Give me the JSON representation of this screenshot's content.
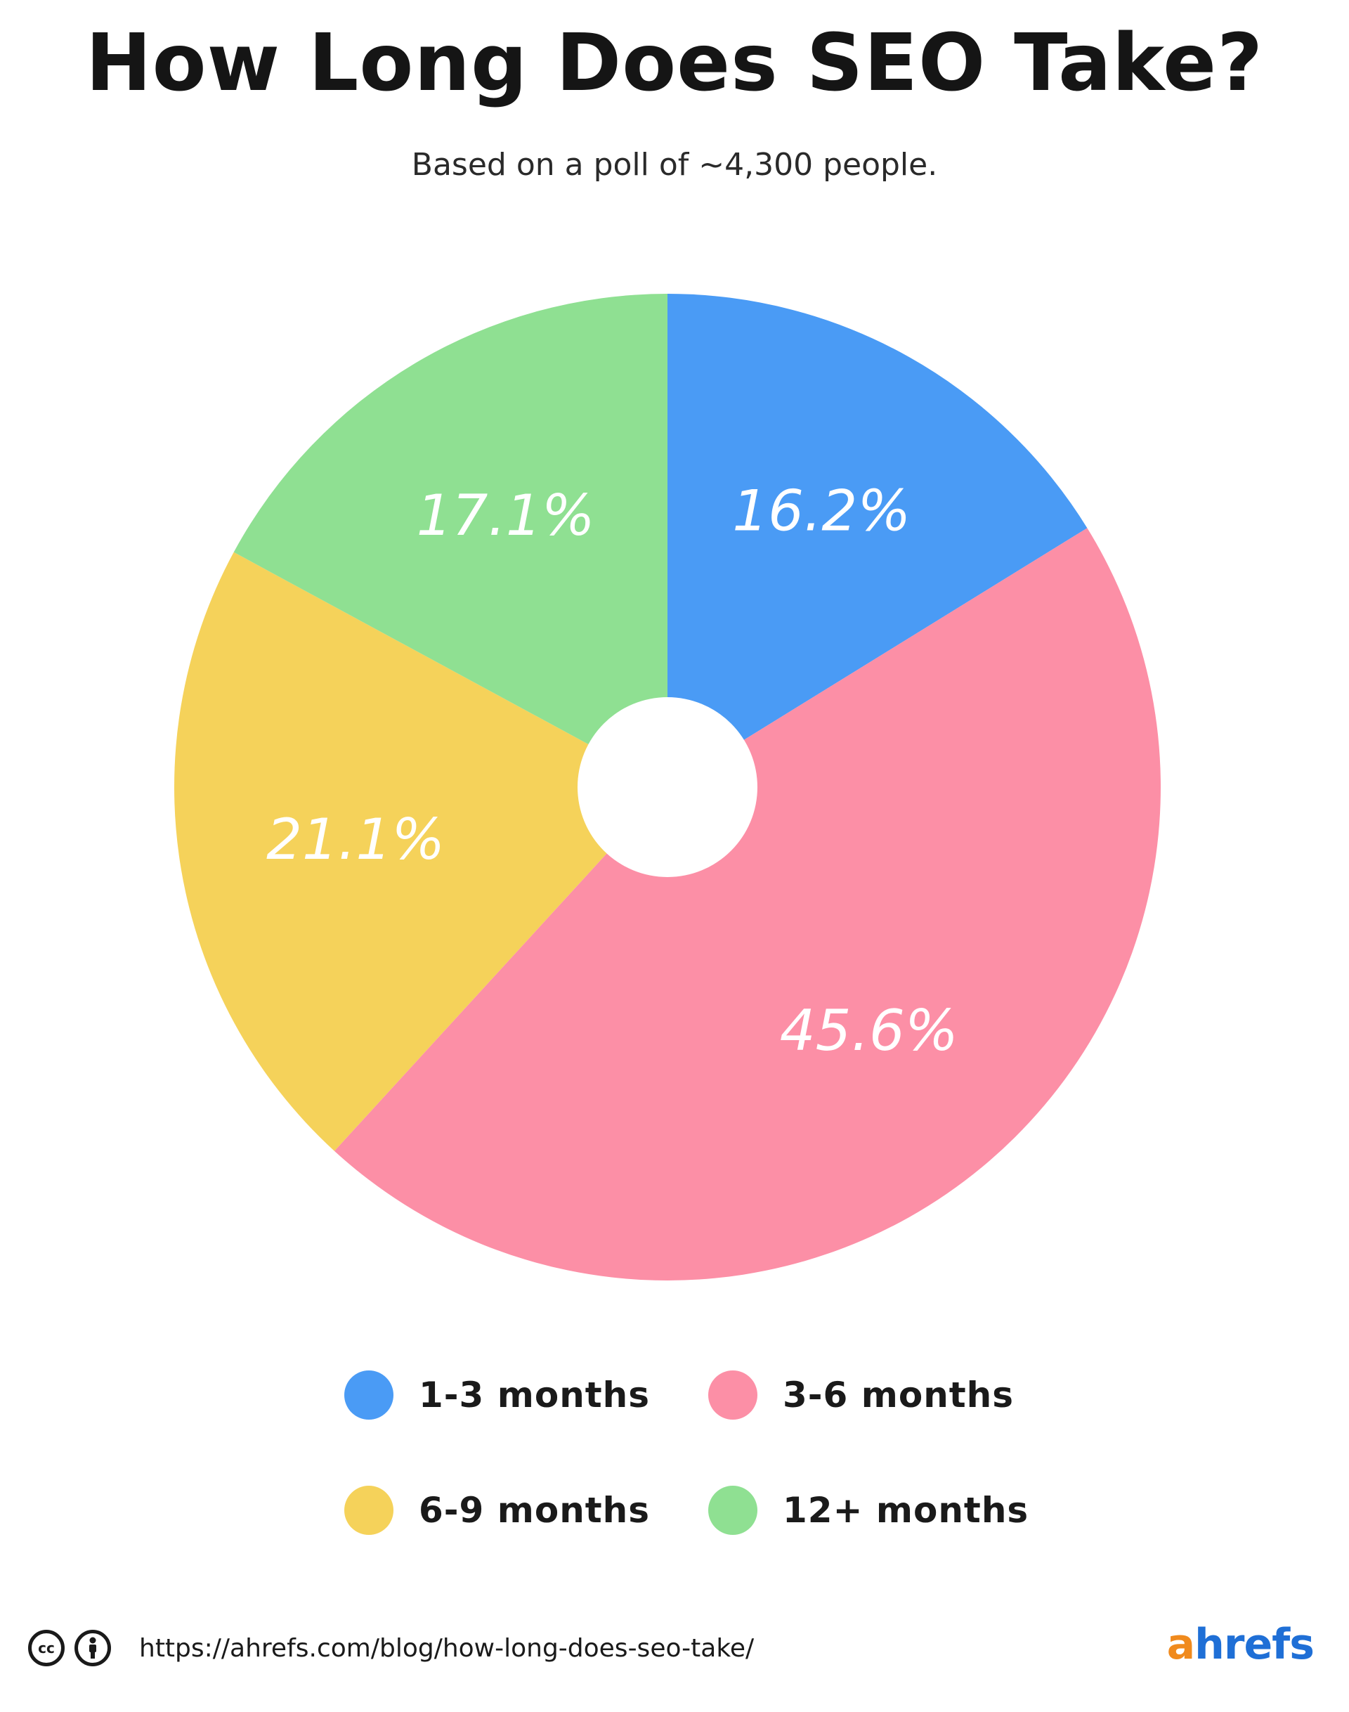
{
  "title": "How Long Does SEO Take?",
  "subtitle": "Based on a poll of ~4,300 people.",
  "chart_data": {
    "type": "pie",
    "donut": true,
    "start_angle_deg": 0,
    "direction": "clockwise",
    "slices": [
      {
        "label": "1-3 months",
        "value": 16.2,
        "display": "16.2%",
        "color": "#4a9bf5"
      },
      {
        "label": "3-6 months",
        "value": 45.6,
        "display": "45.6%",
        "color": "#fc8fa6"
      },
      {
        "label": "6-9 months",
        "value": 21.1,
        "display": "21.1%",
        "color": "#f5d25a"
      },
      {
        "label": "12+ months",
        "value": 17.1,
        "display": "17.1%",
        "color": "#8fe092"
      }
    ],
    "legend_position": "bottom"
  },
  "legend": [
    {
      "label": "1-3 months",
      "color": "#4a9bf5"
    },
    {
      "label": "3-6 months",
      "color": "#fc8fa6"
    },
    {
      "label": "6-9 months",
      "color": "#f5d25a"
    },
    {
      "label": "12+ months",
      "color": "#8fe092"
    }
  ],
  "footer": {
    "cc_icon": "creative-commons-icon",
    "by_icon": "attribution-icon",
    "cc_text": "cc",
    "url": "https://ahrefs.com/blog/how-long-does-seo-take/"
  },
  "brand": {
    "first": "a",
    "rest": "hrefs",
    "first_color": "#f08a1d",
    "rest_color": "#1f6fd6"
  }
}
